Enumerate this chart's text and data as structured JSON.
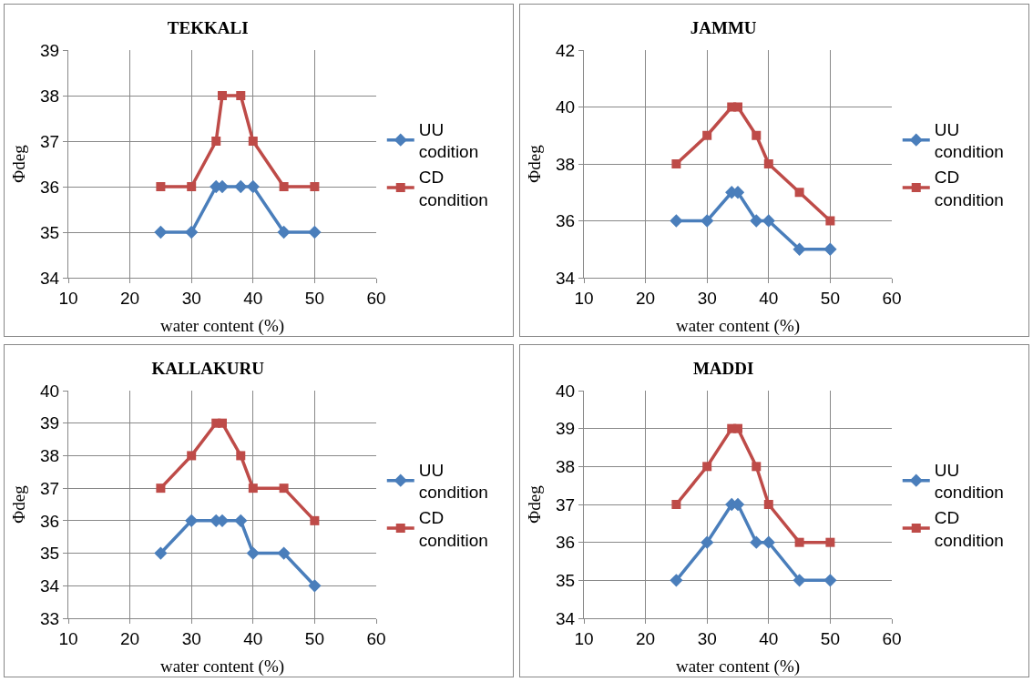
{
  "chart_data": [
    {
      "type": "line",
      "title": "TEKKALI",
      "xlabel": "water content (%)",
      "ylabel": "Φdeg",
      "xlim": [
        10,
        60
      ],
      "xticks": [
        10,
        20,
        30,
        40,
        50,
        60
      ],
      "ylim": [
        34,
        39
      ],
      "yticks": [
        34,
        35,
        36,
        37,
        38,
        39
      ],
      "grid": true,
      "legend": "right",
      "line_style": "solid",
      "series": [
        {
          "name": "UU codition",
          "color": "#4a7ebb",
          "marker": "diamond",
          "x": [
            25,
            30,
            34,
            35,
            38,
            40,
            45,
            50
          ],
          "values": [
            35,
            35,
            36,
            36,
            36,
            36,
            35,
            35
          ]
        },
        {
          "name": "CD condition",
          "color": "#be4b48",
          "marker": "square",
          "x": [
            25,
            30,
            34,
            35,
            38,
            40,
            45,
            50
          ],
          "values": [
            36,
            36,
            37,
            38,
            38,
            37,
            36,
            36
          ]
        }
      ]
    },
    {
      "type": "line",
      "title": "JAMMU",
      "xlabel": "water content (%)",
      "ylabel": "Φdeg",
      "xlim": [
        10,
        60
      ],
      "xticks": [
        10,
        20,
        30,
        40,
        50,
        60
      ],
      "ylim": [
        34,
        42
      ],
      "yticks": [
        34,
        36,
        38,
        40,
        42
      ],
      "grid": true,
      "legend": "right",
      "line_style": "solid",
      "series": [
        {
          "name": "UU condition",
          "color": "#4a7ebb",
          "marker": "diamond",
          "x": [
            25,
            30,
            34,
            35,
            38,
            40,
            45,
            50
          ],
          "values": [
            36,
            36,
            37,
            37,
            36,
            36,
            35,
            35
          ]
        },
        {
          "name": "CD condition",
          "color": "#be4b48",
          "marker": "square",
          "x": [
            25,
            30,
            34,
            35,
            38,
            40,
            45,
            50
          ],
          "values": [
            38,
            39,
            40,
            40,
            39,
            38,
            37,
            36
          ]
        }
      ]
    },
    {
      "type": "line",
      "title": "KALLAKURU",
      "xlabel": "water content (%)",
      "ylabel": "Φdeg",
      "xlim": [
        10,
        60
      ],
      "xticks": [
        10,
        20,
        30,
        40,
        50,
        60
      ],
      "ylim": [
        33,
        40
      ],
      "yticks": [
        33,
        34,
        35,
        36,
        37,
        38,
        39,
        40
      ],
      "grid": true,
      "legend": "right",
      "line_style": "solid",
      "series": [
        {
          "name": "UU condition",
          "color": "#4a7ebb",
          "marker": "diamond",
          "x": [
            25,
            30,
            34,
            35,
            38,
            40,
            45,
            50
          ],
          "values": [
            35,
            36,
            36,
            36,
            36,
            35,
            35,
            34
          ]
        },
        {
          "name": "CD condition",
          "color": "#be4b48",
          "marker": "square",
          "x": [
            25,
            30,
            34,
            35,
            38,
            40,
            45,
            50
          ],
          "values": [
            37,
            38,
            39,
            39,
            38,
            37,
            37,
            36
          ]
        }
      ]
    },
    {
      "type": "line",
      "title": "MADDI",
      "xlabel": "water content (%)",
      "ylabel": "Φdeg",
      "xlim": [
        10,
        60
      ],
      "xticks": [
        10,
        20,
        30,
        40,
        50,
        60
      ],
      "ylim": [
        34,
        40
      ],
      "yticks": [
        34,
        35,
        36,
        37,
        38,
        39,
        40
      ],
      "grid": true,
      "legend": "right",
      "line_style": "solid",
      "series": [
        {
          "name": "UU condition",
          "color": "#4a7ebb",
          "marker": "diamond",
          "x": [
            25,
            30,
            34,
            35,
            38,
            40,
            45,
            50
          ],
          "values": [
            35,
            36,
            37,
            37,
            36,
            36,
            35,
            35
          ]
        },
        {
          "name": "CD condition",
          "color": "#be4b48",
          "marker": "square",
          "x": [
            25,
            30,
            34,
            35,
            38,
            40,
            45,
            50
          ],
          "values": [
            37,
            38,
            39,
            39,
            38,
            37,
            36,
            36
          ]
        }
      ]
    }
  ]
}
